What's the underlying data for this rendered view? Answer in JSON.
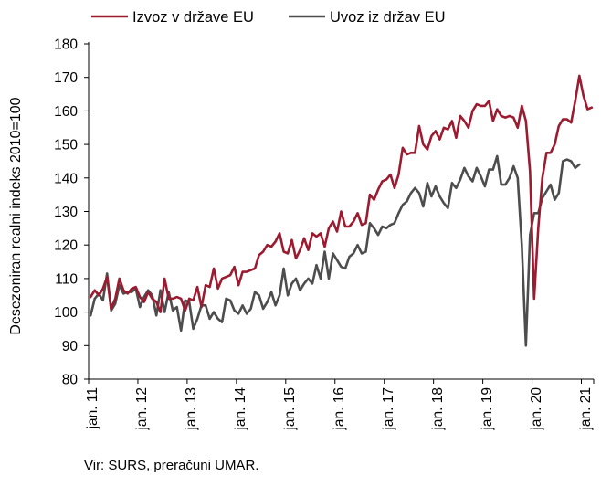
{
  "chart_data": {
    "type": "line",
    "ylabel": "Desezoniran realni indeks 2010=100",
    "xlabel": "",
    "ylim": [
      80,
      180
    ],
    "yticks": [
      80,
      90,
      100,
      110,
      120,
      130,
      140,
      150,
      160,
      170,
      180
    ],
    "xticks": [
      "jan. 11",
      "jan. 12",
      "jan. 13",
      "jan. 14",
      "jan. 15",
      "jan. 16",
      "jan. 17",
      "jan. 18",
      "jan. 19",
      "jan. 20",
      "jan. 21"
    ],
    "x_start": "2011-01",
    "x_frequency": "monthly",
    "legend_position": "top",
    "grid": false,
    "series": [
      {
        "name": "Izvoz v države EU",
        "color": "#9b1b30",
        "values": [
          104.5,
          106.5,
          105,
          107,
          110.5,
          101,
          104,
          110,
          106.5,
          105.5,
          107,
          107.5,
          104.5,
          103,
          106,
          104,
          103,
          100,
          110,
          104,
          104,
          104.5,
          104,
          100.5,
          104,
          103.5,
          107.5,
          101.5,
          108,
          107.5,
          113,
          107,
          110,
          110.5,
          111,
          113.5,
          108,
          112,
          112,
          112.5,
          113,
          117,
          118,
          120,
          119.5,
          121,
          123.5,
          118,
          117.5,
          121.5,
          116,
          118.5,
          122,
          118.5,
          123.5,
          122.5,
          123.5,
          119.5,
          125,
          127,
          124,
          130,
          125.5,
          125.5,
          127,
          129.5,
          126,
          126.5,
          135,
          133.5,
          136.5,
          139,
          139.5,
          141,
          137,
          141,
          149,
          147,
          147.5,
          147.5,
          155.5,
          150,
          148.5,
          152.5,
          154,
          151.5,
          155,
          154.5,
          157,
          152,
          158.5,
          157,
          155,
          160,
          162,
          161.5,
          161.5,
          163,
          157,
          160.5,
          158.5,
          158,
          158.5,
          158,
          155,
          161.5,
          157,
          142,
          104,
          125,
          140,
          147.5,
          147.5,
          150,
          155.5,
          157.5,
          157.5,
          156.5,
          163,
          170.5,
          164.5,
          160.5,
          161
        ]
      },
      {
        "name": "Uvoz iz držav EU",
        "color": "#4d4d4d",
        "values": [
          99,
          104,
          105.5,
          103.5,
          111.5,
          100.5,
          102.5,
          108,
          105.5,
          106,
          106,
          107,
          101.5,
          104.5,
          106.5,
          105,
          99,
          106.5,
          100,
          106,
          100.5,
          101.5,
          94.5,
          103.5,
          103,
          95,
          98,
          102,
          102,
          98,
          100,
          98,
          97,
          104,
          103.5,
          100.5,
          99.5,
          102,
          99.5,
          101,
          106,
          105,
          101,
          103,
          106,
          102,
          105,
          113,
          105,
          108.5,
          110,
          106.5,
          108.5,
          110,
          108.5,
          114,
          110,
          118,
          110,
          117.5,
          115.5,
          113.5,
          113,
          116.5,
          117.5,
          120,
          117.5,
          118,
          126.5,
          125,
          123,
          125.5,
          125,
          126,
          126.5,
          129.5,
          132,
          133,
          135.5,
          137,
          135.5,
          131.5,
          138.5,
          134.5,
          137.5,
          134.5,
          132.5,
          131,
          138.5,
          137,
          139.5,
          143,
          140.5,
          139,
          143,
          140.5,
          137.5,
          142.5,
          142.5,
          146.5,
          138,
          138,
          140,
          143.5,
          140,
          120,
          90,
          123,
          129.5,
          129.5,
          134,
          136,
          138,
          133.5,
          135.5,
          145,
          145.5,
          145,
          143,
          144
        ]
      }
    ]
  },
  "source": "Vir: SURS, preračuni UMAR."
}
